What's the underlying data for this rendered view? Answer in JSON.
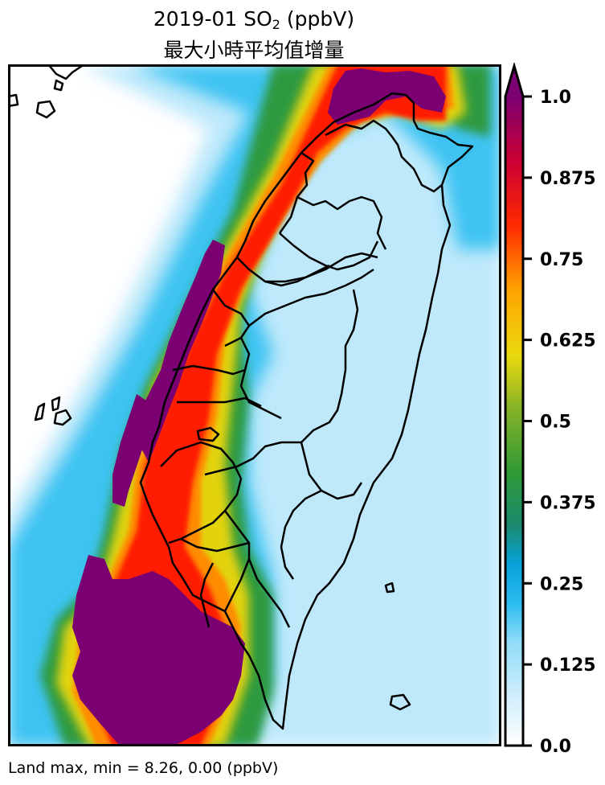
{
  "title": {
    "prefix": "2019-01 SO",
    "subscript": "2",
    "suffix": " (ppbV)",
    "line2": "最大小時平均值增量"
  },
  "colorbar": {
    "ticks": [
      "0.0",
      "0.125",
      "0.25",
      "0.375",
      "0.5",
      "0.625",
      "0.75",
      "0.875",
      "1.0"
    ],
    "range": [
      0.0,
      1.0
    ],
    "extend": "max",
    "colors": [
      "#ffffff",
      "#cdeefc",
      "#8fdcf7",
      "#2bbcf0",
      "#07a2d8",
      "#1b8a70",
      "#2f9a35",
      "#86b327",
      "#e9d90e",
      "#ffa500",
      "#ff2a00",
      "#cc0033",
      "#7b0072"
    ]
  },
  "footer": {
    "text": "Land max, min = 8.26, 0.00 (ppbV)"
  },
  "map": {
    "region": "Taiwan",
    "variable": "SO2 max hourly increment"
  }
}
